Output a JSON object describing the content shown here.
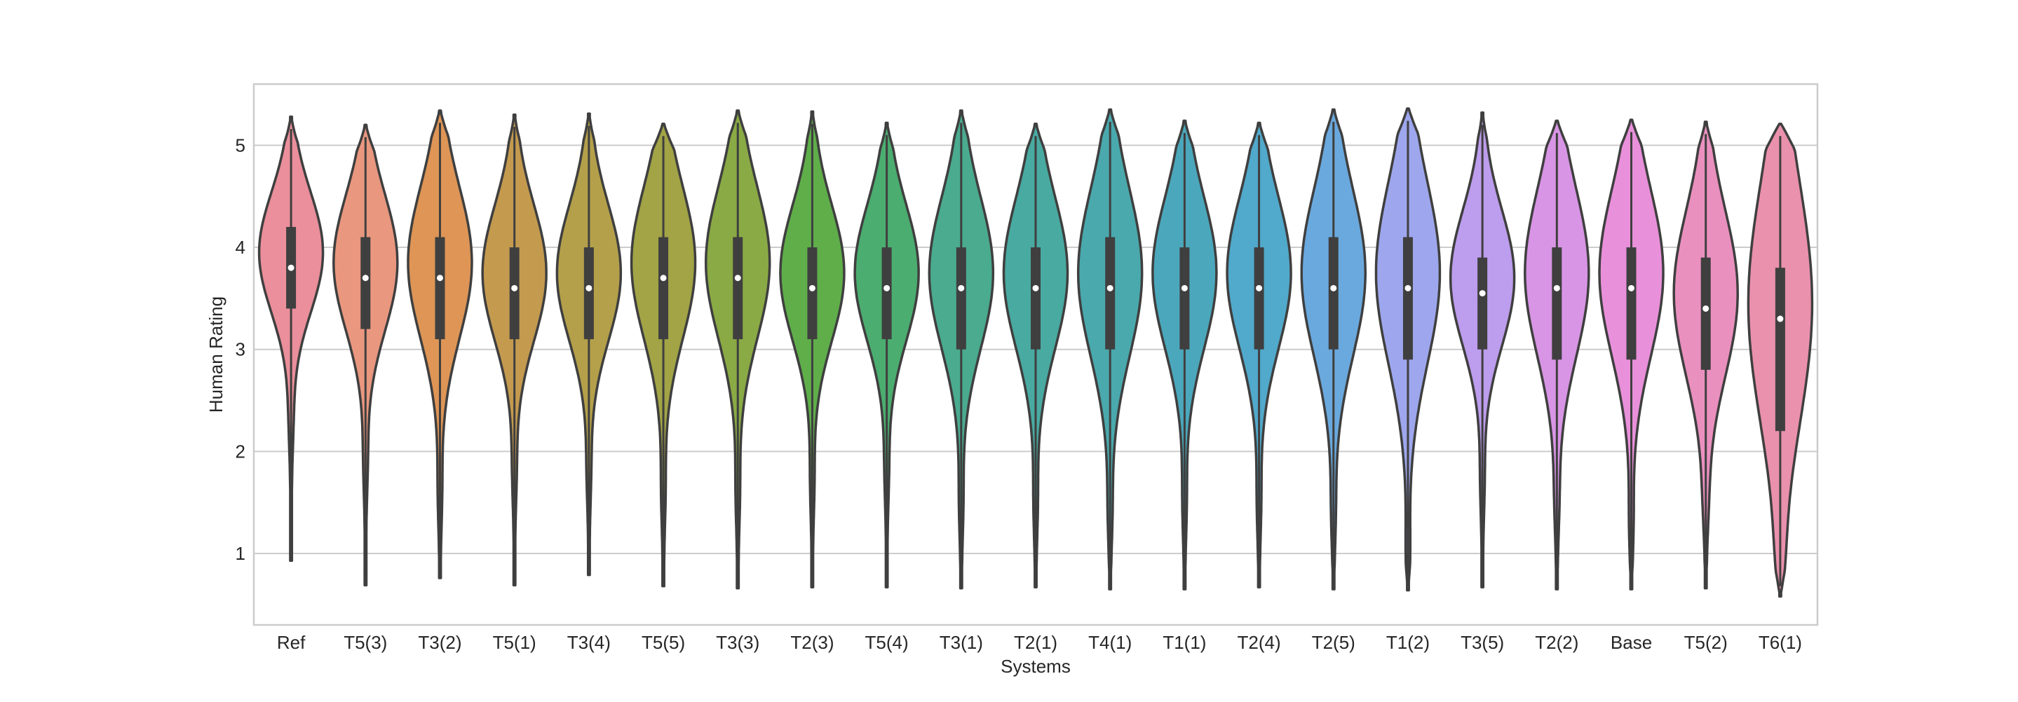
{
  "chart_data": {
    "type": "violin",
    "xlabel": "Systems",
    "ylabel": "Human Rating",
    "ylim": [
      0.3,
      5.6
    ],
    "yticks": [
      1,
      2,
      3,
      4,
      5
    ],
    "grid": true,
    "style": "seaborn-whitegrid",
    "categories": [
      "Ref",
      "T5(3)",
      "T3(2)",
      "T5(1)",
      "T3(4)",
      "T5(5)",
      "T3(3)",
      "T2(3)",
      "T5(4)",
      "T3(1)",
      "T2(1)",
      "T4(1)",
      "T1(1)",
      "T2(4)",
      "T2(5)",
      "T1(2)",
      "T3(5)",
      "T2(2)",
      "Base",
      "T5(2)",
      "T6(1)"
    ],
    "colors": [
      "#ea8f9b",
      "#e9977f",
      "#de9556",
      "#c49a4f",
      "#b4a04a",
      "#a2a446",
      "#8aaa45",
      "#5fae4a",
      "#4bad6f",
      "#4aab8f",
      "#49aaa1",
      "#4aa9ad",
      "#4ba8bc",
      "#51a9cb",
      "#6aa9de",
      "#9ea7ed",
      "#bd9ded",
      "#d895e5",
      "#e990db",
      "#ea90bf",
      "#ea91ad"
    ],
    "stats": [
      {
        "median": 3.8,
        "q1": 3.4,
        "q3": 4.2,
        "min": 0.93,
        "max": 5.28,
        "whisker_low": 2.3
      },
      {
        "median": 3.7,
        "q1": 3.2,
        "q3": 4.1,
        "min": 0.69,
        "max": 5.2,
        "whisker_low": 1.9
      },
      {
        "median": 3.7,
        "q1": 3.1,
        "q3": 4.1,
        "min": 0.76,
        "max": 5.34,
        "whisker_low": 1.6
      },
      {
        "median": 3.6,
        "q1": 3.1,
        "q3": 4.0,
        "min": 0.69,
        "max": 5.3,
        "whisker_low": 1.8
      },
      {
        "median": 3.6,
        "q1": 3.1,
        "q3": 4.0,
        "min": 0.79,
        "max": 5.31,
        "whisker_low": 1.8
      },
      {
        "median": 3.7,
        "q1": 3.1,
        "q3": 4.1,
        "min": 0.68,
        "max": 5.21,
        "whisker_low": 1.6
      },
      {
        "median": 3.7,
        "q1": 3.1,
        "q3": 4.1,
        "min": 0.66,
        "max": 5.34,
        "whisker_low": 1.6
      },
      {
        "median": 3.6,
        "q1": 3.1,
        "q3": 4.0,
        "min": 0.67,
        "max": 5.33,
        "whisker_low": 1.7
      },
      {
        "median": 3.6,
        "q1": 3.1,
        "q3": 4.0,
        "min": 0.67,
        "max": 5.22,
        "whisker_low": 1.8
      },
      {
        "median": 3.6,
        "q1": 3.0,
        "q3": 4.0,
        "min": 0.66,
        "max": 5.34,
        "whisker_low": 1.5
      },
      {
        "median": 3.6,
        "q1": 3.0,
        "q3": 4.0,
        "min": 0.67,
        "max": 5.21,
        "whisker_low": 1.5
      },
      {
        "median": 3.6,
        "q1": 3.0,
        "q3": 4.1,
        "min": 0.65,
        "max": 5.35,
        "whisker_low": 1.4
      },
      {
        "median": 3.6,
        "q1": 3.0,
        "q3": 4.0,
        "min": 0.65,
        "max": 5.24,
        "whisker_low": 1.5
      },
      {
        "median": 3.6,
        "q1": 3.0,
        "q3": 4.0,
        "min": 0.67,
        "max": 5.22,
        "whisker_low": 1.5
      },
      {
        "median": 3.6,
        "q1": 3.0,
        "q3": 4.1,
        "min": 0.65,
        "max": 5.35,
        "whisker_low": 1.4
      },
      {
        "median": 3.6,
        "q1": 2.9,
        "q3": 4.1,
        "min": 0.64,
        "max": 5.36,
        "whisker_low": 1.0
      },
      {
        "median": 3.55,
        "q1": 3.0,
        "q3": 3.9,
        "min": 0.67,
        "max": 5.32,
        "whisker_low": 1.7
      },
      {
        "median": 3.6,
        "q1": 2.9,
        "q3": 4.0,
        "min": 0.65,
        "max": 5.24,
        "whisker_low": 1.5
      },
      {
        "median": 3.6,
        "q1": 2.9,
        "q3": 4.0,
        "min": 0.65,
        "max": 5.25,
        "whisker_low": 1.3
      },
      {
        "median": 3.4,
        "q1": 2.8,
        "q3": 3.9,
        "min": 0.66,
        "max": 5.23,
        "whisker_low": 1.5
      },
      {
        "median": 3.3,
        "q1": 2.2,
        "q3": 3.8,
        "min": 0.58,
        "max": 5.21,
        "whisker_low": 1.0
      }
    ]
  }
}
